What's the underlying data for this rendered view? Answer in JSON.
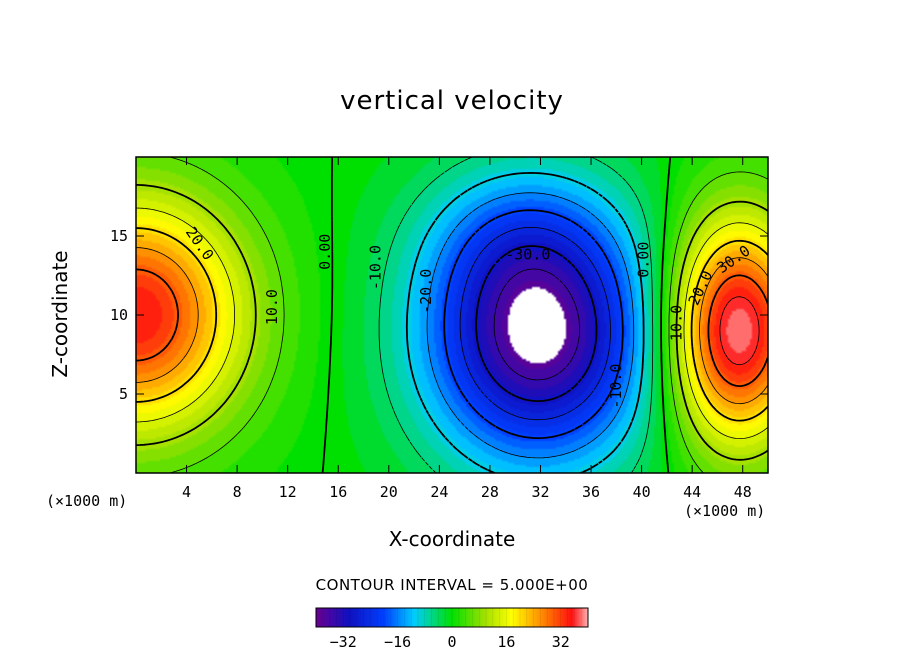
{
  "chart_data": {
    "type": "heatmap",
    "title": "vertical velocity",
    "xlabel": "X-coordinate",
    "ylabel": "Z-coordinate",
    "x_unit_left": "(×1000 m)",
    "x_unit_right": "(×1000 m)",
    "xlim": [
      0,
      50
    ],
    "ylim": [
      0,
      20
    ],
    "xticks": [
      4,
      8,
      12,
      16,
      20,
      24,
      28,
      32,
      36,
      40,
      44,
      48
    ],
    "yticks": [
      5,
      10,
      15
    ],
    "contour_interval_text": "CONTOUR INTERVAL = 5.000E+00",
    "colorbar": {
      "range": [
        -40,
        40
      ],
      "ticks": [
        -32,
        -16,
        0,
        16,
        32
      ],
      "tick_labels": [
        "−32",
        "−16",
        "0",
        "16",
        "32"
      ]
    },
    "contour_labels": [
      {
        "text": "20.0",
        "x": 5,
        "z": 14.5,
        "angle": 55
      },
      {
        "text": "10.0",
        "x": 10.8,
        "z": 10.5,
        "angle": -90
      },
      {
        "text": "0.00",
        "x": 15,
        "z": 14,
        "angle": -90
      },
      {
        "text": "-10.0",
        "x": 19,
        "z": 13,
        "angle": -90
      },
      {
        "text": "-20.0",
        "x": 23,
        "z": 11.5,
        "angle": -90
      },
      {
        "text": "-30.0",
        "x": 31,
        "z": 13.8,
        "angle": 0
      },
      {
        "text": "-10.0",
        "x": 38,
        "z": 5.5,
        "angle": -90
      },
      {
        "text": "0.00",
        "x": 40.2,
        "z": 13.5,
        "angle": -90
      },
      {
        "text": "10.0",
        "x": 42.8,
        "z": 9.5,
        "angle": -90
      },
      {
        "text": "20.0",
        "x": 44.7,
        "z": 11.7,
        "angle": -65
      },
      {
        "text": "30.0",
        "x": 47.3,
        "z": 13.5,
        "angle": -35
      }
    ],
    "features": {
      "updraft_left": {
        "center_x": 0,
        "center_z": 10,
        "max": 35
      },
      "downdraft_center": {
        "center_x": 31.8,
        "center_z": 8.8,
        "min": -40
      },
      "updraft_right": {
        "center_x": 47.5,
        "center_z": 9,
        "max": 40
      }
    }
  }
}
